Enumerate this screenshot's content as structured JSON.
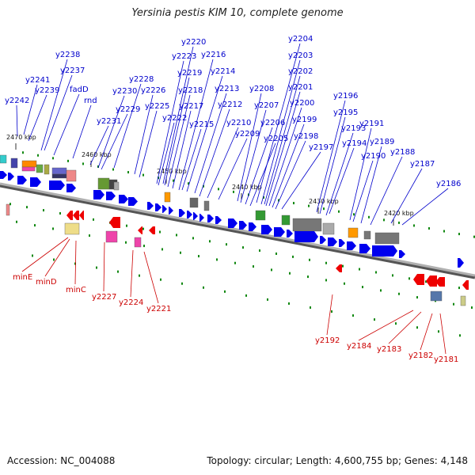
{
  "title": "Yersinia pestis KIM 10, complete genome",
  "footer": {
    "accession": "Accession: NC_004088",
    "summary": "Topology: circular; Length: 4,600,755 bp; Genes: 4,148"
  },
  "colors": {
    "forward_label": "#0000cc",
    "reverse_label": "#cc0000",
    "forward_arrow": "#0000ee",
    "reverse_arrow": "#ee0000",
    "backbone": "#888888",
    "tick": "#118811"
  },
  "ticks": [
    "2470 kbp",
    "2460 kbp",
    "2450 kbp",
    "2440 kbp",
    "2430 kbp",
    "2420 kbp"
  ],
  "forward_genes": [
    "y2242",
    "y2241",
    "y2239",
    "y2238",
    "y2237",
    "fadD",
    "rnd",
    "y2231",
    "y2230",
    "y2229",
    "y2228",
    "y2226",
    "y2225",
    "y2223",
    "y2222",
    "y2220",
    "y2219",
    "y2218",
    "y2217",
    "y2216",
    "y2215",
    "y2214",
    "y2213",
    "y2212",
    "y2210",
    "y2209",
    "y2208",
    "y2207",
    "y2206",
    "y2205",
    "y2204",
    "y2203",
    "y2202",
    "y2201",
    "y2200",
    "y2199",
    "y2198",
    "y2197",
    "y2196",
    "y2195",
    "y2194",
    "y2193",
    "y2191",
    "y2190",
    "y2189",
    "y2188",
    "y2187",
    "y2186"
  ],
  "reverse_genes": [
    "minE",
    "minD",
    "minC",
    "y2227",
    "y2224",
    "y2221",
    "y2192",
    "y2184",
    "y2183",
    "y2182",
    "y2181"
  ]
}
